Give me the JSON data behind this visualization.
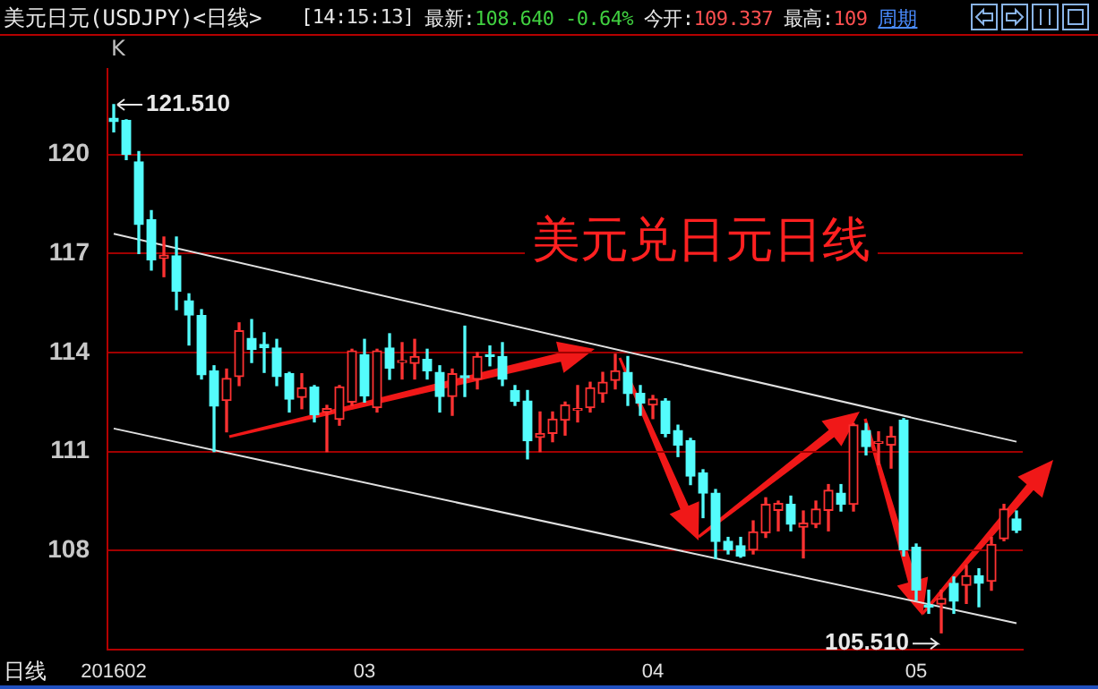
{
  "chart_data": {
    "type": "candlestick",
    "title": "美元日元(USDJPY)<日线>",
    "xlabel": "日线",
    "categories": [
      "201602",
      null,
      null,
      null,
      null,
      null,
      null,
      null,
      null,
      null,
      null,
      null,
      null,
      null,
      null,
      null,
      null,
      null,
      null,
      null,
      "03",
      null,
      null,
      null,
      null,
      null,
      null,
      null,
      null,
      null,
      null,
      null,
      null,
      null,
      null,
      null,
      null,
      null,
      null,
      null,
      null,
      null,
      null,
      "04",
      null,
      null,
      null,
      null,
      null,
      null,
      null,
      null,
      null,
      null,
      null,
      null,
      null,
      null,
      null,
      null,
      null,
      null,
      null,
      null,
      "05",
      null,
      null,
      null,
      null,
      null,
      null,
      null,
      null
    ],
    "ohlc": [
      [
        121.1,
        121.51,
        120.69,
        121.0
      ],
      [
        121.03,
        121.05,
        119.85,
        120.0
      ],
      [
        119.78,
        120.09,
        117.0,
        117.88
      ],
      [
        118.02,
        118.3,
        116.5,
        116.81
      ],
      [
        116.85,
        117.5,
        116.3,
        116.95
      ],
      [
        116.93,
        117.5,
        115.3,
        115.86
      ],
      [
        115.57,
        115.78,
        114.23,
        115.14
      ],
      [
        115.12,
        115.3,
        113.2,
        113.33
      ],
      [
        113.45,
        113.6,
        111.0,
        112.38
      ],
      [
        112.55,
        113.5,
        111.6,
        113.22
      ],
      [
        113.27,
        114.9,
        113.0,
        114.66
      ],
      [
        114.43,
        115.0,
        113.7,
        114.1
      ],
      [
        114.25,
        114.6,
        113.4,
        114.15
      ],
      [
        114.14,
        114.4,
        113.0,
        113.27
      ],
      [
        113.36,
        113.4,
        112.2,
        112.59
      ],
      [
        112.64,
        113.36,
        112.3,
        112.93
      ],
      [
        112.95,
        113.0,
        111.9,
        112.12
      ],
      [
        112.2,
        112.4,
        111.0,
        112.3
      ],
      [
        111.98,
        113.0,
        111.8,
        112.96
      ],
      [
        112.5,
        114.1,
        112.4,
        114.05
      ],
      [
        113.93,
        114.4,
        112.5,
        112.69
      ],
      [
        112.33,
        114.1,
        112.2,
        114.05
      ],
      [
        114.14,
        114.57,
        113.19,
        113.53
      ],
      [
        113.7,
        114.3,
        113.2,
        113.76
      ],
      [
        113.67,
        114.4,
        113.2,
        113.88
      ],
      [
        113.79,
        114.1,
        113.2,
        113.45
      ],
      [
        113.4,
        113.6,
        112.2,
        112.67
      ],
      [
        112.67,
        113.5,
        112.1,
        113.36
      ],
      [
        113.3,
        114.8,
        112.67,
        113.24
      ],
      [
        113.19,
        114.0,
        112.9,
        113.88
      ],
      [
        113.92,
        114.2,
        113.6,
        113.88
      ],
      [
        113.88,
        114.3,
        113.0,
        113.19
      ],
      [
        112.85,
        113.0,
        112.4,
        112.53
      ],
      [
        112.53,
        112.85,
        110.78,
        111.33
      ],
      [
        111.43,
        112.2,
        111.0,
        111.55
      ],
      [
        111.55,
        112.2,
        111.3,
        111.98
      ],
      [
        111.95,
        112.5,
        111.5,
        112.41
      ],
      [
        112.25,
        113.0,
        111.9,
        112.3
      ],
      [
        112.33,
        113.1,
        112.2,
        112.93
      ],
      [
        112.76,
        113.4,
        112.5,
        113.1
      ],
      [
        113.16,
        113.95,
        112.9,
        113.45
      ],
      [
        113.4,
        113.88,
        112.4,
        112.76
      ],
      [
        112.76,
        113.0,
        112.1,
        112.47
      ],
      [
        112.41,
        112.7,
        112.0,
        112.59
      ],
      [
        112.53,
        112.6,
        111.45,
        111.55
      ],
      [
        111.64,
        111.8,
        110.85,
        111.2
      ],
      [
        111.33,
        111.4,
        110.0,
        110.26
      ],
      [
        110.35,
        110.45,
        109.0,
        109.74
      ],
      [
        109.74,
        109.85,
        107.76,
        108.28
      ],
      [
        108.28,
        108.4,
        107.9,
        108.02
      ],
      [
        108.15,
        108.4,
        107.8,
        107.84
      ],
      [
        108.02,
        108.9,
        107.9,
        108.57
      ],
      [
        108.54,
        109.6,
        108.4,
        109.4
      ],
      [
        109.22,
        109.5,
        108.6,
        109.43
      ],
      [
        109.4,
        109.65,
        108.6,
        108.8
      ],
      [
        108.71,
        109.2,
        107.78,
        108.83
      ],
      [
        108.8,
        109.5,
        108.7,
        109.26
      ],
      [
        109.22,
        110.0,
        108.6,
        109.83
      ],
      [
        109.74,
        110.0,
        109.2,
        109.4
      ],
      [
        109.4,
        111.85,
        109.2,
        111.81
      ],
      [
        111.64,
        111.85,
        110.9,
        111.15
      ],
      [
        111.25,
        111.6,
        110.6,
        111.3
      ],
      [
        111.2,
        111.75,
        110.5,
        111.46
      ],
      [
        111.95,
        112.0,
        107.84,
        108.02
      ],
      [
        108.1,
        108.2,
        106.5,
        106.81
      ],
      [
        106.35,
        106.8,
        106.1,
        106.29
      ],
      [
        106.38,
        106.8,
        105.51,
        106.55
      ],
      [
        107.01,
        107.2,
        106.1,
        106.47
      ],
      [
        106.95,
        107.55,
        106.4,
        107.24
      ],
      [
        107.24,
        107.45,
        106.3,
        107.01
      ],
      [
        107.07,
        108.4,
        106.8,
        108.19
      ],
      [
        108.36,
        109.4,
        108.3,
        109.26
      ],
      [
        108.96,
        109.2,
        108.55,
        108.62
      ]
    ],
    "colors": [
      "#54fcfc",
      "#54fcfc",
      "#54fcfc",
      "#54fcfc",
      "#ff3232",
      "#54fcfc",
      "#54fcfc",
      "#54fcfc",
      "#54fcfc",
      "#ff3232",
      "#ff3232",
      "#54fcfc",
      "#54fcfc",
      "#54fcfc",
      "#54fcfc",
      "#ff3232",
      "#54fcfc",
      "#ff3232",
      "#ff3232",
      "#ff3232",
      "#54fcfc",
      "#ff3232",
      "#54fcfc",
      "#ff3232",
      "#ff3232",
      "#54fcfc",
      "#54fcfc",
      "#ff3232",
      "#54fcfc",
      "#ff3232",
      "#54fcfc",
      "#54fcfc",
      "#54fcfc",
      "#54fcfc",
      "#ff3232",
      "#ff3232",
      "#ff3232",
      "#ff3232",
      "#ff3232",
      "#ff3232",
      "#ff3232",
      "#54fcfc",
      "#54fcfc",
      "#ff3232",
      "#54fcfc",
      "#54fcfc",
      "#54fcfc",
      "#54fcfc",
      "#54fcfc",
      "#54fcfc",
      "#54fcfc",
      "#ff3232",
      "#ff3232",
      "#ff3232",
      "#54fcfc",
      "#ff3232",
      "#ff3232",
      "#ff3232",
      "#54fcfc",
      "#ff3232",
      "#54fcfc",
      "#ff3232",
      "#ff3232",
      "#54fcfc",
      "#54fcfc",
      "#54fcfc",
      "#ff3232",
      "#54fcfc",
      "#ff3232",
      "#54fcfc",
      "#ff3232",
      "#ff3232",
      "#54fcfc"
    ],
    "series": [
      {
        "type": "line",
        "color": "#e0e0e0",
        "values": [
          117.6,
          null,
          null,
          null,
          null,
          null,
          null,
          null,
          null,
          null,
          null,
          null,
          null,
          null,
          null,
          null,
          null,
          null,
          null,
          null,
          null,
          null,
          null,
          null,
          null,
          null,
          null,
          null,
          null,
          null,
          null,
          null,
          null,
          null,
          null,
          null,
          null,
          null,
          null,
          null,
          null,
          null,
          null,
          null,
          null,
          null,
          null,
          null,
          null,
          null,
          null,
          null,
          null,
          null,
          null,
          null,
          null,
          null,
          null,
          null,
          null,
          null,
          null,
          null,
          null,
          null,
          null,
          null,
          null,
          null,
          null,
          null,
          111.3
        ]
      },
      {
        "type": "line",
        "color": "#e0e0e0",
        "values": [
          111.7,
          null,
          null,
          null,
          null,
          null,
          null,
          null,
          null,
          null,
          null,
          null,
          null,
          null,
          null,
          null,
          null,
          null,
          null,
          null,
          null,
          null,
          null,
          null,
          null,
          null,
          null,
          null,
          null,
          null,
          null,
          null,
          null,
          null,
          null,
          null,
          null,
          null,
          null,
          null,
          null,
          null,
          null,
          null,
          null,
          null,
          null,
          null,
          null,
          null,
          null,
          null,
          null,
          null,
          null,
          null,
          null,
          null,
          null,
          null,
          null,
          null,
          null,
          null,
          null,
          null,
          null,
          null,
          null,
          null,
          null,
          null,
          105.8
        ]
      }
    ],
    "ylim": [
      105,
      122.6
    ],
    "yticks": [
      108,
      111,
      114,
      117,
      120
    ],
    "grid": "y",
    "annotations": [
      "K",
      "121.510",
      "105.510",
      "美元兑日元日线",
      "[14:15:13]",
      "最新:108.640 -0.64%",
      "今开:109.337",
      "最高:109",
      "周期"
    ]
  }
}
